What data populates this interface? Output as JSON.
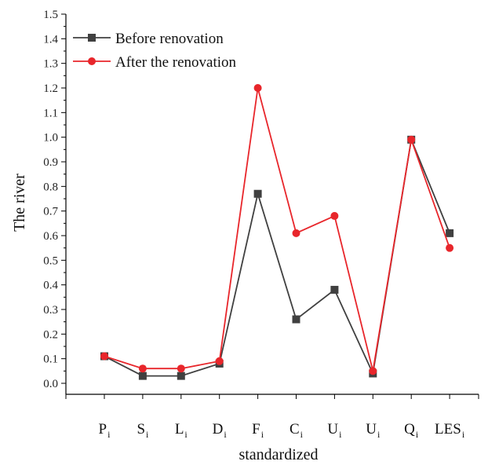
{
  "chart_data": {
    "type": "line",
    "xlabel": "standardized",
    "ylabel": "The river",
    "ylim": [
      0,
      1.5
    ],
    "yticks": [
      "0.0",
      "0.1",
      "0.2",
      "0.3",
      "0.4",
      "0.5",
      "0.6",
      "0.7",
      "0.8",
      "0.9",
      "1.0",
      "1.1",
      "1.2",
      "1.3",
      "1.4",
      "1.5"
    ],
    "categories": [
      {
        "main": "P",
        "sub": "i"
      },
      {
        "main": "S",
        "sub": "i"
      },
      {
        "main": "L",
        "sub": "i"
      },
      {
        "main": "D",
        "sub": "i"
      },
      {
        "main": "F",
        "sub": "i"
      },
      {
        "main": "C",
        "sub": "i"
      },
      {
        "main": "U",
        "sub": "i"
      },
      {
        "main": "U",
        "sub": "i"
      },
      {
        "main": "Q",
        "sub": "i"
      },
      {
        "main": "LES",
        "sub": "i"
      }
    ],
    "series": [
      {
        "name": "Before renovation",
        "color": "#404040",
        "marker": "square",
        "values": [
          0.11,
          0.03,
          0.03,
          0.08,
          0.77,
          0.26,
          0.38,
          0.04,
          0.99,
          0.61
        ]
      },
      {
        "name": "After the renovation",
        "color": "#e8262b",
        "marker": "circle",
        "values": [
          0.11,
          0.06,
          0.06,
          0.09,
          1.2,
          0.61,
          0.68,
          0.05,
          0.99,
          0.55
        ]
      }
    ],
    "legend_position": "top-left",
    "grid": false
  }
}
